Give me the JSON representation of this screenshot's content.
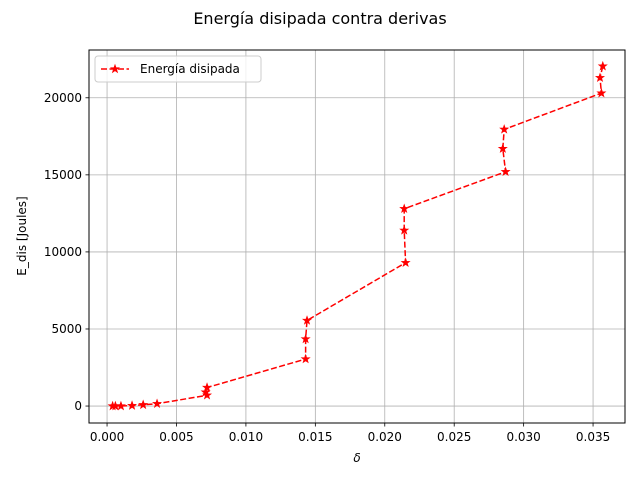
{
  "chart_data": {
    "type": "line",
    "title": "Energía disipada contra derivas",
    "xlabel": "δ",
    "ylabel": "E_dis [Joules]",
    "xlim": [
      -0.0013,
      0.0373
    ],
    "ylim": [
      -1100,
      23100
    ],
    "xticks": [
      0.0,
      0.005,
      0.01,
      0.015,
      0.02,
      0.025,
      0.03,
      0.035
    ],
    "xtick_labels": [
      "0.000",
      "0.005",
      "0.010",
      "0.015",
      "0.020",
      "0.025",
      "0.030",
      "0.035"
    ],
    "yticks": [
      0,
      5000,
      10000,
      15000,
      20000
    ],
    "ytick_labels": [
      "0",
      "5000",
      "10000",
      "15000",
      "20000"
    ],
    "grid": true,
    "legend_position": "upper-left",
    "series": [
      {
        "name": "Energía disipada",
        "color": "#ff0000",
        "line_style": "dashed",
        "marker": "star",
        "x": [
          0.0004,
          0.0006,
          0.001,
          0.0018,
          0.0026,
          0.0036,
          0.0072,
          0.0071,
          0.0072,
          0.0143,
          0.0143,
          0.0144,
          0.0215,
          0.0214,
          0.0214,
          0.0287,
          0.0285,
          0.0286,
          0.0356,
          0.0355,
          0.0357
        ],
        "y": [
          0,
          0,
          0,
          30,
          80,
          150,
          700,
          900,
          1200,
          3050,
          4350,
          5550,
          9300,
          11400,
          12800,
          15200,
          16700,
          17950,
          20300,
          21300,
          22050
        ]
      }
    ]
  }
}
